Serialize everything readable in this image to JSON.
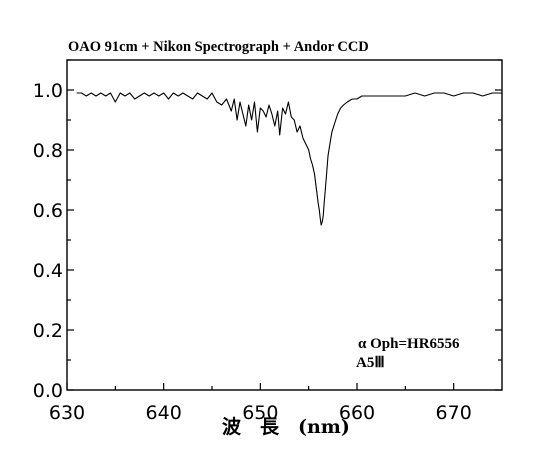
{
  "chart_data": {
    "type": "line",
    "title": "OAO 91cm + Nikon Spectrograph + Andor CCD",
    "xlabel": "波　長　(nm)",
    "ylabel": "",
    "xlim": [
      630,
      675
    ],
    "ylim": [
      0.0,
      1.1
    ],
    "xticks": [
      {
        "value": 630,
        "label": "630"
      },
      {
        "value": 640,
        "label": "640"
      },
      {
        "value": 650,
        "label": "650"
      },
      {
        "value": 660,
        "label": "660"
      },
      {
        "value": 670,
        "label": "670"
      }
    ],
    "yticks": [
      {
        "value": 0.0,
        "label": "0.0"
      },
      {
        "value": 0.2,
        "label": "0.2"
      },
      {
        "value": 0.4,
        "label": "0.4"
      },
      {
        "value": 0.6,
        "label": "0.6"
      },
      {
        "value": 0.8,
        "label": "0.8"
      },
      {
        "value": 1.0,
        "label": "1.0"
      }
    ],
    "annotations": [
      {
        "text": "α Oph=HR6556"
      },
      {
        "text": "A5Ⅲ"
      }
    ],
    "grid": false,
    "legend": "none",
    "series": [
      {
        "color": "#000000",
        "x": [
          631.0,
          631.5,
          632.0,
          632.5,
          633.0,
          633.5,
          634.0,
          634.5,
          635.0,
          635.5,
          636.0,
          636.5,
          637.0,
          637.5,
          638.0,
          638.5,
          639.0,
          639.5,
          640.0,
          640.5,
          641.0,
          641.5,
          642.0,
          642.5,
          643.0,
          643.5,
          644.0,
          644.5,
          645.0,
          645.5,
          646.0,
          646.5,
          647.0,
          647.3,
          647.6,
          647.9,
          648.2,
          648.5,
          648.8,
          649.1,
          649.4,
          649.7,
          650.0,
          650.3,
          650.6,
          650.9,
          651.2,
          651.5,
          651.8,
          652.0,
          652.3,
          652.6,
          652.9,
          653.2,
          653.5,
          653.8,
          654.1,
          654.4,
          654.7,
          655.0,
          655.2,
          655.4,
          655.6,
          655.8,
          656.0,
          656.1,
          656.2,
          656.3,
          656.4,
          656.5,
          656.6,
          656.8,
          657.0,
          657.2,
          657.4,
          657.6,
          657.8,
          658.0,
          658.3,
          658.6,
          659.0,
          659.5,
          660.0,
          660.5,
          661.0,
          662.0,
          663.0,
          664.0,
          665.0,
          666.0,
          667.0,
          668.0,
          669.0,
          670.0,
          671.0,
          672.0,
          673.0,
          674.0,
          675.0
        ],
        "y": [
          0.99,
          0.99,
          0.98,
          0.99,
          0.98,
          0.99,
          0.98,
          0.99,
          0.96,
          0.99,
          0.98,
          0.99,
          0.97,
          0.98,
          0.99,
          0.98,
          0.99,
          0.98,
          0.99,
          0.97,
          0.99,
          0.98,
          0.99,
          0.98,
          0.97,
          0.99,
          0.98,
          0.97,
          0.99,
          0.96,
          0.95,
          0.97,
          0.93,
          0.97,
          0.9,
          0.96,
          0.92,
          0.88,
          0.95,
          0.9,
          0.96,
          0.86,
          0.94,
          0.93,
          0.91,
          0.95,
          0.92,
          0.88,
          0.93,
          0.85,
          0.94,
          0.92,
          0.96,
          0.91,
          0.9,
          0.86,
          0.88,
          0.84,
          0.82,
          0.8,
          0.77,
          0.75,
          0.72,
          0.67,
          0.62,
          0.6,
          0.57,
          0.55,
          0.56,
          0.58,
          0.62,
          0.7,
          0.78,
          0.82,
          0.86,
          0.88,
          0.9,
          0.92,
          0.94,
          0.95,
          0.96,
          0.97,
          0.97,
          0.98,
          0.98,
          0.98,
          0.98,
          0.98,
          0.98,
          0.99,
          0.98,
          0.99,
          0.99,
          0.98,
          0.99,
          0.99,
          0.98,
          0.99,
          0.99
        ]
      }
    ]
  }
}
